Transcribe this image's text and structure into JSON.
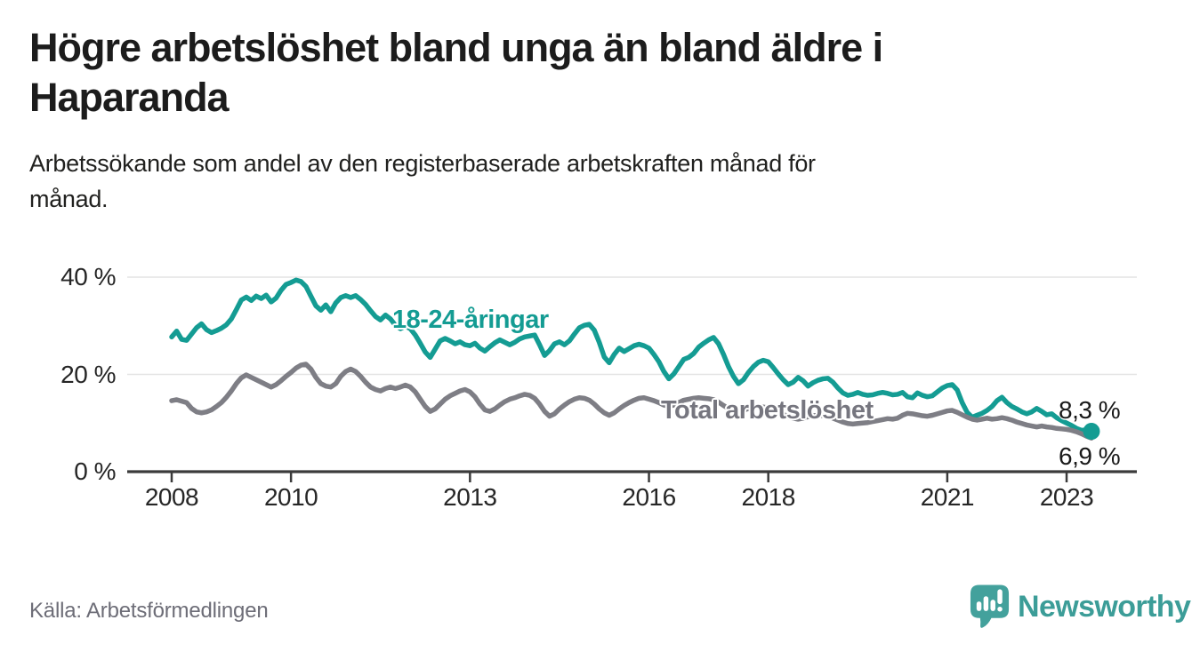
{
  "header": {
    "title_lines": [
      "Högre arbetslöshet bland unga än bland äldre i",
      "Haparanda"
    ],
    "subtitle_lines": [
      "Arbetssökande som andel av den registerbaserade arbetskraften månad för",
      "månad."
    ]
  },
  "footer": {
    "source": "Källa: Arbetsförmedlingen",
    "logo_text": "Newsworthy"
  },
  "colors": {
    "young": "#149c93",
    "total": "#7e7e85",
    "axis": "#3b3b3b",
    "gridline": "#e4e4e4",
    "end_label": "#191919",
    "logo_icon": "#43a19c",
    "logo_text": "#3c9d98"
  },
  "chart_data": {
    "type": "line",
    "title": "Högre arbetslöshet bland unga än bland äldre i Haparanda",
    "subtitle": "Arbetssökande som andel av den registerbaserade arbetskraften månad för månad.",
    "unit": "%",
    "grid": "horizontal",
    "ylim": [
      0,
      44
    ],
    "x_start": "2008-01",
    "x_end": "2023-06",
    "points_per_year": 12,
    "y_ticks": [
      {
        "label": "0 %",
        "value": 0
      },
      {
        "label": "20 %",
        "value": 20
      },
      {
        "label": "40 %",
        "value": 40
      }
    ],
    "x_ticks": [
      {
        "label": "2008",
        "year": 2008
      },
      {
        "label": "2010",
        "year": 2010
      },
      {
        "label": "2013",
        "year": 2013
      },
      {
        "label": "2016",
        "year": 2016
      },
      {
        "label": "2018",
        "year": 2018
      },
      {
        "label": "2021",
        "year": 2021
      },
      {
        "label": "2023",
        "year": 2023
      }
    ],
    "series": [
      {
        "name": "18-24-åringar",
        "label": "18-24-åringar",
        "color": "#149c93",
        "end_label": "8,3 %",
        "end_value": 8.3,
        "marker_end": true,
        "values": [
          27.7,
          28.9,
          27.2,
          27.0,
          28.3,
          29.6,
          30.4,
          29.2,
          28.6,
          29.0,
          29.5,
          30.2,
          31.4,
          33.3,
          35.3,
          35.9,
          35.2,
          36.1,
          35.6,
          36.3,
          34.9,
          35.7,
          37.3,
          38.5,
          38.9,
          39.4,
          39.1,
          38.1,
          36.1,
          34.1,
          33.2,
          34.3,
          32.9,
          34.7,
          35.8,
          36.2,
          35.8,
          36.2,
          35.4,
          34.4,
          33.1,
          31.9,
          31.2,
          32.2,
          31.4,
          30.1,
          29.4,
          29.9,
          29.4,
          28.1,
          26.4,
          24.6,
          23.5,
          25.2,
          26.9,
          27.4,
          26.9,
          26.3,
          26.7,
          26.1,
          25.9,
          26.4,
          25.4,
          24.8,
          25.7,
          26.5,
          27.1,
          26.6,
          26.1,
          26.6,
          27.3,
          27.7,
          27.9,
          28.1,
          26.1,
          23.9,
          24.9,
          26.3,
          26.7,
          26.1,
          26.9,
          28.3,
          29.6,
          30.1,
          30.3,
          29.1,
          26.6,
          23.6,
          22.4,
          24.1,
          25.4,
          24.7,
          25.3,
          25.9,
          26.2,
          25.9,
          25.4,
          24.1,
          22.6,
          20.6,
          19.1,
          20.1,
          21.6,
          23.1,
          23.5,
          24.3,
          25.6,
          26.4,
          27.1,
          27.6,
          26.3,
          24.1,
          21.6,
          19.6,
          18.1,
          18.9,
          20.4,
          21.6,
          22.5,
          22.9,
          22.6,
          21.4,
          20.1,
          18.9,
          17.9,
          18.4,
          19.4,
          18.7,
          17.6,
          18.3,
          18.8,
          19.1,
          19.2,
          18.4,
          17.2,
          16.2,
          15.7,
          15.9,
          16.3,
          15.9,
          15.7,
          15.8,
          16.1,
          16.3,
          16.1,
          15.8,
          15.9,
          16.3,
          15.4,
          15.2,
          16.2,
          15.7,
          15.4,
          15.6,
          16.4,
          17.2,
          17.7,
          17.9,
          16.8,
          14.2,
          12.2,
          11.2,
          11.6,
          12.0,
          12.6,
          13.4,
          14.6,
          15.3,
          14.2,
          13.4,
          12.9,
          12.3,
          11.9,
          12.3,
          13.0,
          12.4,
          11.7,
          11.9,
          11.1,
          10.5,
          10.0,
          9.5,
          8.9,
          8.5,
          8.6,
          8.3
        ]
      },
      {
        "name": "Total arbetslöshet",
        "label": "Total arbetslöshet",
        "color": "#7e7e85",
        "end_label": "6,9 %",
        "end_value": 6.9,
        "marker_end": false,
        "values": [
          14.6,
          14.8,
          14.5,
          14.2,
          13.0,
          12.3,
          12.1,
          12.3,
          12.7,
          13.4,
          14.2,
          15.3,
          16.6,
          18.1,
          19.3,
          19.9,
          19.4,
          18.9,
          18.4,
          17.9,
          17.4,
          17.9,
          18.7,
          19.6,
          20.4,
          21.3,
          21.9,
          22.1,
          21.1,
          19.4,
          18.1,
          17.6,
          17.4,
          18.1,
          19.6,
          20.6,
          21.1,
          20.6,
          19.6,
          18.4,
          17.4,
          16.9,
          16.6,
          17.1,
          17.4,
          17.1,
          17.4,
          17.8,
          17.4,
          16.4,
          14.9,
          13.4,
          12.4,
          12.9,
          13.9,
          14.9,
          15.6,
          16.1,
          16.6,
          16.9,
          16.4,
          15.4,
          13.9,
          12.7,
          12.4,
          12.9,
          13.7,
          14.4,
          14.9,
          15.2,
          15.6,
          15.9,
          15.7,
          15.1,
          13.9,
          12.4,
          11.4,
          11.9,
          12.9,
          13.7,
          14.4,
          14.9,
          15.2,
          15.1,
          14.7,
          13.9,
          12.9,
          12.1,
          11.6,
          12.1,
          12.9,
          13.6,
          14.2,
          14.7,
          15.1,
          15.2,
          14.9,
          14.6,
          14.2,
          13.7,
          13.4,
          13.7,
          14.2,
          14.7,
          14.9,
          15.1,
          15.2,
          15.1,
          15.0,
          14.8,
          14.3,
          13.6,
          13.0,
          12.6,
          12.3,
          12.6,
          13.0,
          13.3,
          13.5,
          13.3,
          13.1,
          12.8,
          12.3,
          11.8,
          11.3,
          11.0,
          10.8,
          11.0,
          11.3,
          11.5,
          11.6,
          11.5,
          11.3,
          11.0,
          10.6,
          10.2,
          9.9,
          9.8,
          9.9,
          10.0,
          10.1,
          10.3,
          10.5,
          10.7,
          10.9,
          10.8,
          11.0,
          11.6,
          12.0,
          11.9,
          11.7,
          11.5,
          11.4,
          11.6,
          11.9,
          12.2,
          12.5,
          12.6,
          12.2,
          11.7,
          11.2,
          10.8,
          10.6,
          10.8,
          11.0,
          10.8,
          10.9,
          11.1,
          10.9,
          10.6,
          10.2,
          9.9,
          9.6,
          9.4,
          9.2,
          9.4,
          9.2,
          9.1,
          8.9,
          8.8,
          8.7,
          8.5,
          8.2,
          7.8,
          7.3,
          6.9
        ]
      }
    ]
  }
}
